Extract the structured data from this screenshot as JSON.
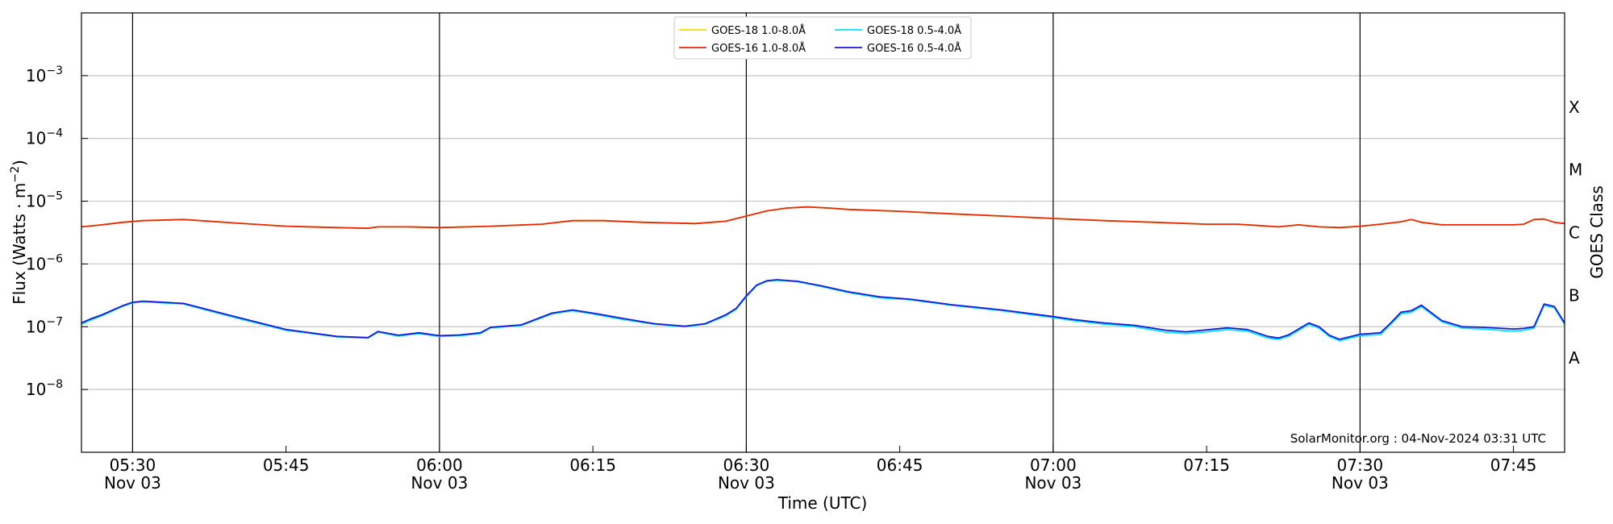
{
  "chart_data": {
    "type": "line",
    "xlabel": "Time (UTC)",
    "ylabel": "Flux (Watts · m",
    "ylabel_sup": "−2",
    "ylabel_close": ")",
    "right_label": "GOES Class",
    "yscale": "log",
    "ylim": [
      1e-09,
      0.01
    ],
    "xlim": [
      "05:25",
      "07:50"
    ],
    "grid": "horizontal at each decade",
    "legend_position": "top-center",
    "credit": "SolarMonitor.org : 04-Nov-2024 03:31 UTC",
    "y_ticks": [
      {
        "value": 1e-08,
        "base": "10",
        "exp": "−8"
      },
      {
        "value": 1e-07,
        "base": "10",
        "exp": "−7"
      },
      {
        "value": 1e-06,
        "base": "10",
        "exp": "−6"
      },
      {
        "value": 1e-05,
        "base": "10",
        "exp": "−5"
      },
      {
        "value": 0.0001,
        "base": "10",
        "exp": "−4"
      },
      {
        "value": 0.001,
        "base": "10",
        "exp": "−3"
      }
    ],
    "x_ticks": [
      {
        "time": "05:30",
        "label": "05:30",
        "sub": "Nov 03"
      },
      {
        "time": "05:45",
        "label": "05:45",
        "sub": ""
      },
      {
        "time": "06:00",
        "label": "06:00",
        "sub": "Nov 03"
      },
      {
        "time": "06:15",
        "label": "06:15",
        "sub": ""
      },
      {
        "time": "06:30",
        "label": "06:30",
        "sub": "Nov 03"
      },
      {
        "time": "06:45",
        "label": "06:45",
        "sub": ""
      },
      {
        "time": "07:00",
        "label": "07:00",
        "sub": "Nov 03"
      },
      {
        "time": "07:15",
        "label": "07:15",
        "sub": ""
      },
      {
        "time": "07:30",
        "label": "07:30",
        "sub": "Nov 03"
      },
      {
        "time": "07:45",
        "label": "07:45",
        "sub": ""
      }
    ],
    "vlines": [
      "05:30",
      "06:00",
      "06:30",
      "07:00",
      "07:30"
    ],
    "goes_classes": [
      {
        "label": "X",
        "value": 0.000316
      },
      {
        "label": "M",
        "value": 3.16e-05
      },
      {
        "label": "C",
        "value": 3.16e-06
      },
      {
        "label": "B",
        "value": 3.16e-07
      },
      {
        "label": "A",
        "value": 3.16e-08
      }
    ],
    "series": [
      {
        "name": "GOES-18 1.0-8.0Å",
        "color": "#ffd700",
        "x": [
          "05:25",
          "05:27",
          "05:29",
          "05:31",
          "05:35",
          "05:40",
          "05:45",
          "05:50",
          "05:53",
          "05:54",
          "05:57",
          "06:00",
          "06:05",
          "06:10",
          "06:13",
          "06:16",
          "06:20",
          "06:25",
          "06:28",
          "06:30",
          "06:32",
          "06:34",
          "06:36",
          "06:38",
          "06:40",
          "06:45",
          "06:50",
          "06:55",
          "07:00",
          "07:05",
          "07:10",
          "07:15",
          "07:18",
          "07:20",
          "07:22",
          "07:24",
          "07:26",
          "07:28",
          "07:30",
          "07:32",
          "07:34",
          "07:35",
          "07:36",
          "07:38",
          "07:40",
          "07:45",
          "07:46",
          "07:47",
          "07:48",
          "07:49",
          "07:50"
        ],
        "y": [
          3.9e-06,
          4.2e-06,
          4.6e-06,
          4.9e-06,
          5.1e-06,
          4.5e-06,
          4e-06,
          3.8e-06,
          3.7e-06,
          3.9e-06,
          3.9e-06,
          3.8e-06,
          4e-06,
          4.3e-06,
          4.9e-06,
          4.9e-06,
          4.6e-06,
          4.4e-06,
          4.8e-06,
          5.8e-06,
          7e-06,
          7.8e-06,
          8.1e-06,
          7.8e-06,
          7.4e-06,
          6.9e-06,
          6.3e-06,
          5.8e-06,
          5.3e-06,
          4.9e-06,
          4.6e-06,
          4.3e-06,
          4.3e-06,
          4.1e-06,
          3.9e-06,
          4.2e-06,
          3.9e-06,
          3.8e-06,
          4e-06,
          4.3e-06,
          4.7e-06,
          5.1e-06,
          4.6e-06,
          4.2e-06,
          4.2e-06,
          4.2e-06,
          4.3e-06,
          5.1e-06,
          5.2e-06,
          4.6e-06,
          4.4e-06
        ]
      },
      {
        "name": "GOES-16 1.0-8.0Å",
        "color": "#e8290b",
        "x": [
          "05:25",
          "05:27",
          "05:29",
          "05:31",
          "05:35",
          "05:40",
          "05:45",
          "05:50",
          "05:53",
          "05:54",
          "05:57",
          "06:00",
          "06:05",
          "06:10",
          "06:13",
          "06:16",
          "06:20",
          "06:25",
          "06:28",
          "06:30",
          "06:32",
          "06:34",
          "06:36",
          "06:38",
          "06:40",
          "06:45",
          "06:50",
          "06:55",
          "07:00",
          "07:05",
          "07:10",
          "07:15",
          "07:18",
          "07:20",
          "07:22",
          "07:24",
          "07:26",
          "07:28",
          "07:30",
          "07:32",
          "07:34",
          "07:35",
          "07:36",
          "07:38",
          "07:40",
          "07:45",
          "07:46",
          "07:47",
          "07:48",
          "07:49",
          "07:50"
        ],
        "y": [
          3.9e-06,
          4.2e-06,
          4.6e-06,
          4.9e-06,
          5.1e-06,
          4.5e-06,
          4e-06,
          3.8e-06,
          3.7e-06,
          3.9e-06,
          3.9e-06,
          3.8e-06,
          4e-06,
          4.3e-06,
          4.9e-06,
          4.9e-06,
          4.6e-06,
          4.4e-06,
          4.8e-06,
          5.8e-06,
          7e-06,
          7.8e-06,
          8.1e-06,
          7.8e-06,
          7.4e-06,
          6.9e-06,
          6.3e-06,
          5.8e-06,
          5.3e-06,
          4.9e-06,
          4.6e-06,
          4.3e-06,
          4.3e-06,
          4.1e-06,
          3.9e-06,
          4.2e-06,
          3.9e-06,
          3.8e-06,
          4e-06,
          4.3e-06,
          4.7e-06,
          5.1e-06,
          4.6e-06,
          4.2e-06,
          4.2e-06,
          4.2e-06,
          4.3e-06,
          5.1e-06,
          5.2e-06,
          4.6e-06,
          4.4e-06
        ]
      },
      {
        "name": "GOES-18 0.5-4.0Å",
        "color": "#00e5ff",
        "x": [
          "05:25",
          "05:26",
          "05:27",
          "05:29",
          "05:30",
          "05:31",
          "05:32",
          "05:35",
          "05:40",
          "05:45",
          "05:50",
          "05:53",
          "05:54",
          "05:56",
          "05:58",
          "06:00",
          "06:02",
          "06:04",
          "06:05",
          "06:08",
          "06:11",
          "06:13",
          "06:15",
          "06:18",
          "06:21",
          "06:24",
          "06:26",
          "06:28",
          "06:29",
          "06:30",
          "06:31",
          "06:32",
          "06:33",
          "06:35",
          "06:37",
          "06:40",
          "06:43",
          "06:46",
          "06:50",
          "06:55",
          "07:00",
          "07:02",
          "07:05",
          "07:08",
          "07:11",
          "07:13",
          "07:15",
          "07:17",
          "07:19",
          "07:21",
          "07:22",
          "07:23",
          "07:25",
          "07:26",
          "07:27",
          "07:28",
          "07:30",
          "07:32",
          "07:33",
          "07:34",
          "07:35",
          "07:36",
          "07:38",
          "07:40",
          "07:42",
          "07:45",
          "07:46",
          "07:47",
          "07:48",
          "07:49",
          "07:50"
        ],
        "y": [
          1.1e-07,
          1.3e-07,
          1.5e-07,
          2.1e-07,
          2.4e-07,
          2.5e-07,
          2.45e-07,
          2.3e-07,
          1.4e-07,
          8.8e-08,
          6.9e-08,
          6.6e-08,
          8.2e-08,
          7.1e-08,
          7.8e-08,
          7e-08,
          7.2e-08,
          7.8e-08,
          9.6e-08,
          1.05e-07,
          1.6e-07,
          1.8e-07,
          1.6e-07,
          1.3e-07,
          1.1e-07,
          1e-07,
          1.1e-07,
          1.5e-07,
          1.9e-07,
          3e-07,
          4.5e-07,
          5.3e-07,
          5.5e-07,
          5.2e-07,
          4.5e-07,
          3.5e-07,
          2.9e-07,
          2.7e-07,
          2.2e-07,
          1.8e-07,
          1.4e-07,
          1.25e-07,
          1.1e-07,
          1e-07,
          8.2e-08,
          7.8e-08,
          8.3e-08,
          9e-08,
          8.5e-08,
          6.6e-08,
          6.3e-08,
          7e-08,
          1.1e-07,
          9.5e-08,
          7e-08,
          6e-08,
          7.2e-08,
          7.5e-08,
          1.1e-07,
          1.6e-07,
          1.7e-07,
          2.1e-07,
          1.2e-07,
          9.5e-08,
          9.2e-08,
          8.5e-08,
          8.8e-08,
          9.5e-08,
          2.2e-07,
          2e-07,
          1.1e-07
        ]
      },
      {
        "name": "GOES-16 0.5-4.0Å",
        "color": "#1a1adc",
        "x": [
          "05:25",
          "05:26",
          "05:27",
          "05:29",
          "05:30",
          "05:31",
          "05:32",
          "05:35",
          "05:40",
          "05:45",
          "05:50",
          "05:53",
          "05:54",
          "05:56",
          "05:58",
          "06:00",
          "06:02",
          "06:04",
          "06:05",
          "06:08",
          "06:11",
          "06:13",
          "06:15",
          "06:18",
          "06:21",
          "06:24",
          "06:26",
          "06:28",
          "06:29",
          "06:30",
          "06:31",
          "06:32",
          "06:33",
          "06:35",
          "06:37",
          "06:40",
          "06:43",
          "06:46",
          "06:50",
          "06:55",
          "07:00",
          "07:02",
          "07:05",
          "07:08",
          "07:11",
          "07:13",
          "07:15",
          "07:17",
          "07:19",
          "07:21",
          "07:22",
          "07:23",
          "07:25",
          "07:26",
          "07:27",
          "07:28",
          "07:30",
          "07:32",
          "07:33",
          "07:34",
          "07:35",
          "07:36",
          "07:38",
          "07:40",
          "07:42",
          "07:45",
          "07:46",
          "07:47",
          "07:48",
          "07:49",
          "07:50"
        ],
        "y": [
          1.15e-07,
          1.35e-07,
          1.55e-07,
          2.15e-07,
          2.45e-07,
          2.55e-07,
          2.5e-07,
          2.35e-07,
          1.45e-07,
          9e-08,
          7e-08,
          6.7e-08,
          8.4e-08,
          7.3e-08,
          8e-08,
          7.2e-08,
          7.4e-08,
          8e-08,
          9.8e-08,
          1.07e-07,
          1.65e-07,
          1.85e-07,
          1.65e-07,
          1.35e-07,
          1.12e-07,
          1.02e-07,
          1.12e-07,
          1.55e-07,
          1.95e-07,
          3.1e-07,
          4.6e-07,
          5.4e-07,
          5.6e-07,
          5.3e-07,
          4.6e-07,
          3.6e-07,
          3e-07,
          2.75e-07,
          2.25e-07,
          1.85e-07,
          1.45e-07,
          1.3e-07,
          1.15e-07,
          1.05e-07,
          8.8e-08,
          8.3e-08,
          8.9e-08,
          9.6e-08,
          9e-08,
          7e-08,
          6.6e-08,
          7.4e-08,
          1.15e-07,
          1e-07,
          7.3e-08,
          6.3e-08,
          7.6e-08,
          8e-08,
          1.15e-07,
          1.7e-07,
          1.8e-07,
          2.2e-07,
          1.25e-07,
          1e-07,
          9.8e-08,
          9.2e-08,
          9.4e-08,
          1e-07,
          2.3e-07,
          2.1e-07,
          1.15e-07
        ]
      }
    ]
  }
}
